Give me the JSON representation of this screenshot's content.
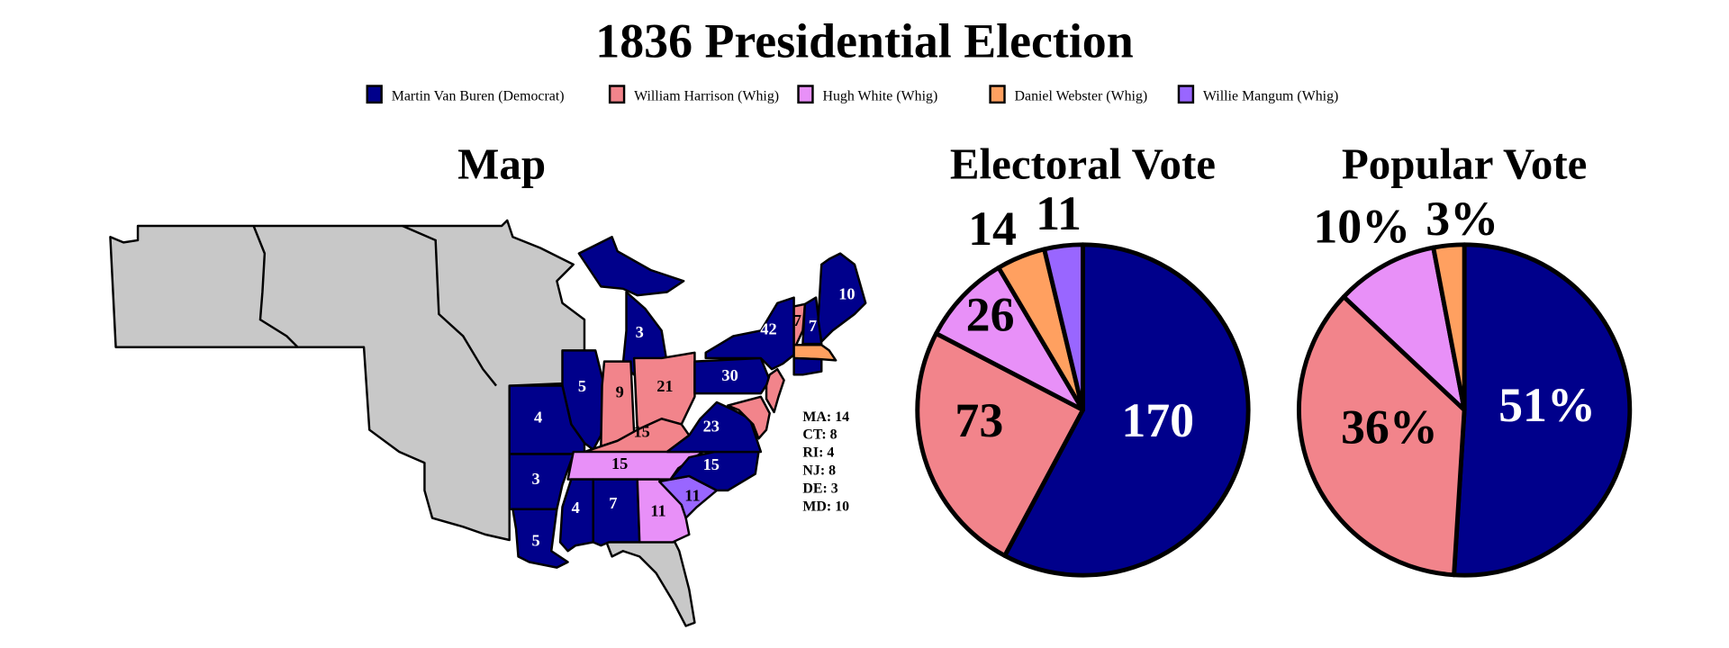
{
  "title": "1836 Presidential Election",
  "colors": {
    "van_buren": "#00008B",
    "harrison": "#F2848B",
    "white": "#E890F8",
    "webster": "#FFA060",
    "mangum": "#9966FF",
    "no_vote": "#C8C8C8"
  },
  "legend": [
    {
      "label": "Martin Van Buren (Democrat)",
      "color": "#00008B"
    },
    {
      "label": "William Harrison (Whig)",
      "color": "#F2848B"
    },
    {
      "label": "Hugh White (Whig)",
      "color": "#E890F8"
    },
    {
      "label": "Daniel Webster (Whig)",
      "color": "#FFA060"
    },
    {
      "label": "Willie Mangum (Whig)",
      "color": "#9966FF"
    }
  ],
  "map": {
    "title": "Map",
    "state_labels": [
      "3",
      "5",
      "9",
      "21",
      "15",
      "4",
      "3",
      "5",
      "15",
      "4",
      "7",
      "11",
      "11",
      "15",
      "23",
      "30",
      "42",
      "7",
      "7",
      "10"
    ],
    "small_states": [
      "MA: 14",
      "CT: 8",
      "RI: 4",
      "NJ: 8",
      "DE: 3",
      "MD: 10"
    ]
  },
  "chart_data": [
    {
      "type": "pie",
      "title": "Electoral Vote",
      "categories": [
        "Martin Van Buren (Democrat)",
        "William Harrison (Whig)",
        "Hugh White (Whig)",
        "Daniel Webster (Whig)",
        "Willie Mangum (Whig)"
      ],
      "values": [
        170,
        73,
        26,
        14,
        11
      ],
      "labels": [
        "170",
        "73",
        "26",
        "14",
        "11"
      ],
      "colors": [
        "#00008B",
        "#F2848B",
        "#E890F8",
        "#FFA060",
        "#9966FF"
      ],
      "start": "top",
      "direction": "clockwise"
    },
    {
      "type": "pie",
      "title": "Popular Vote",
      "categories": [
        "Martin Van Buren (Democrat)",
        "William Harrison (Whig)",
        "Hugh White (Whig)",
        "Daniel Webster (Whig)"
      ],
      "values": [
        51,
        36,
        10,
        3
      ],
      "labels": [
        "51%",
        "36%",
        "10%",
        "3%"
      ],
      "colors": [
        "#00008B",
        "#F2848B",
        "#E890F8",
        "#FFA060"
      ],
      "start": "top",
      "direction": "clockwise"
    }
  ]
}
